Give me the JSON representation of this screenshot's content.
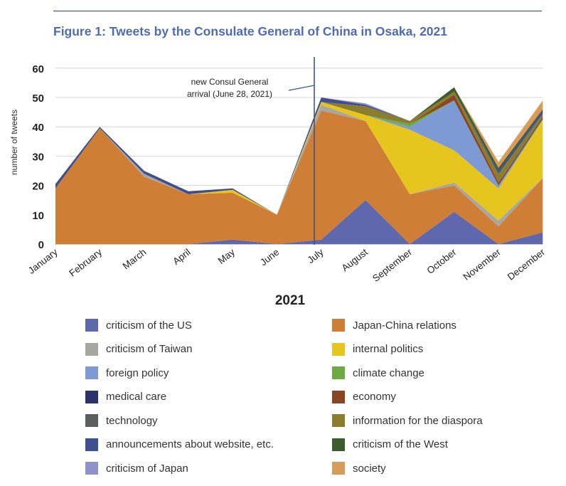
{
  "figure": {
    "title": "Figure 1: Tweets by the Consulate General of China in Osaka, 2021"
  },
  "chart_data": {
    "type": "area",
    "stacked": true,
    "title": "Figure 1: Tweets by the Consulate General of China in Osaka, 2021",
    "xlabel": "2021",
    "ylabel": "number of tweets",
    "ylim": [
      0,
      60
    ],
    "yticks": [
      0,
      10,
      20,
      30,
      40,
      50,
      60
    ],
    "grid": true,
    "legend_position": "bottom",
    "categories": [
      "January",
      "February",
      "March",
      "April",
      "May",
      "June",
      "July",
      "August",
      "September",
      "October",
      "November",
      "December"
    ],
    "annotation": {
      "text_line1": "new Consul General",
      "text_line2": "arrival (June 28, 2021)",
      "x": "July"
    },
    "series": [
      {
        "name": "criticism of the US",
        "color": "#6068ad",
        "values": [
          0,
          0,
          0,
          0,
          1.5,
          0,
          1.5,
          15,
          0,
          11,
          0,
          4
        ]
      },
      {
        "name": "Japan-China relations",
        "color": "#cf7e36",
        "values": [
          19,
          39.5,
          23,
          17,
          16,
          10,
          44,
          27,
          17,
          9,
          6,
          18.5
        ]
      },
      {
        "name": "criticism of Taiwan",
        "color": "#a8a6a1",
        "values": [
          0,
          0,
          1,
          0,
          0,
          0,
          2,
          0,
          0,
          1,
          2,
          0
        ]
      },
      {
        "name": "internal politics",
        "color": "#e6c51f",
        "values": [
          0,
          0,
          0,
          0,
          1,
          0,
          1,
          2,
          22,
          11,
          11,
          20
        ]
      },
      {
        "name": "foreign policy",
        "color": "#7d9ad4",
        "values": [
          0,
          0,
          0,
          0,
          0,
          0,
          0,
          0,
          1,
          17,
          1,
          0
        ]
      },
      {
        "name": "climate change",
        "color": "#6caa43",
        "values": [
          0,
          0,
          0,
          0,
          0,
          0,
          0,
          0,
          1,
          0,
          0,
          0
        ]
      },
      {
        "name": "medical care",
        "color": "#2d326b",
        "values": [
          0,
          0,
          0,
          0,
          0,
          0,
          0,
          0,
          0,
          0,
          0,
          0
        ]
      },
      {
        "name": "economy",
        "color": "#8a4620",
        "values": [
          0,
          0,
          0,
          0,
          0,
          0,
          0,
          0,
          0,
          2,
          1,
          0
        ]
      },
      {
        "name": "technology",
        "color": "#5a5e5c",
        "values": [
          0,
          0,
          0,
          0,
          0,
          0,
          0,
          0,
          0,
          0,
          0,
          1
        ]
      },
      {
        "name": "information for the diaspora",
        "color": "#8a7d2e",
        "values": [
          0,
          0,
          0,
          0,
          0,
          0,
          0,
          3,
          1,
          1,
          3,
          1
        ]
      },
      {
        "name": "announcements about website, etc.",
        "color": "#3f4e8e",
        "values": [
          1.5,
          0.5,
          1,
          1,
          0.5,
          0,
          1.5,
          0.5,
          0,
          0,
          1,
          1
        ]
      },
      {
        "name": "criticism of the West",
        "color": "#3d5c2e",
        "values": [
          0,
          0,
          0,
          0,
          0,
          0,
          0,
          0,
          0,
          1.5,
          1,
          0.5
        ]
      },
      {
        "name": "criticism of Japan",
        "color": "#8f92c8",
        "values": [
          0,
          0,
          0,
          0,
          0,
          0,
          0,
          0.5,
          0,
          0,
          0,
          0
        ]
      },
      {
        "name": "society",
        "color": "#d99b5a",
        "values": [
          0,
          0,
          0,
          0,
          0,
          0,
          0,
          0,
          0,
          0,
          2,
          3
        ]
      }
    ]
  },
  "legend": [
    {
      "label": "criticism of the US",
      "color": "#6068ad"
    },
    {
      "label": "Japan-China relations",
      "color": "#cf7e36"
    },
    {
      "label": "criticism of Taiwan",
      "color": "#a8a6a1"
    },
    {
      "label": "internal politics",
      "color": "#e6c51f"
    },
    {
      "label": "foreign policy",
      "color": "#7d9ad4"
    },
    {
      "label": "climate change",
      "color": "#6caa43"
    },
    {
      "label": "medical care",
      "color": "#2d326b"
    },
    {
      "label": "economy",
      "color": "#8a4620"
    },
    {
      "label": "technology",
      "color": "#5a5e5c"
    },
    {
      "label": "information for the diaspora",
      "color": "#8a7d2e"
    },
    {
      "label": "announcements about website, etc.",
      "color": "#3f4e8e"
    },
    {
      "label": "criticism of the West",
      "color": "#3d5c2e"
    },
    {
      "label": "criticism of Japan",
      "color": "#8f92c8"
    },
    {
      "label": "society",
      "color": "#d99b5a"
    }
  ]
}
